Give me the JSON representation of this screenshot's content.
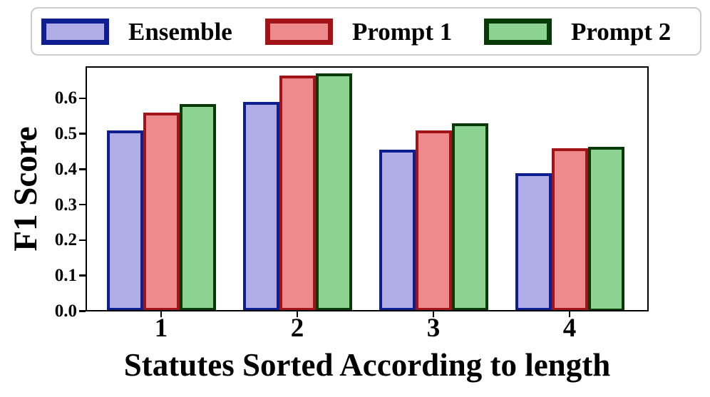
{
  "chart_data": {
    "type": "bar",
    "title": "",
    "xlabel": "Statutes Sorted According to length",
    "ylabel": "F1 Score",
    "categories": [
      "1",
      "2",
      "3",
      "4"
    ],
    "series": [
      {
        "name": "Ensemble",
        "fill": "#b0ace6",
        "edge": "#0d1e91",
        "values": [
          0.505,
          0.585,
          0.45,
          0.385
        ]
      },
      {
        "name": "Prompt 1",
        "fill": "#ee898c",
        "edge": "#a21318",
        "values": [
          0.555,
          0.66,
          0.505,
          0.455
        ]
      },
      {
        "name": "Prompt 2",
        "fill": "#8cd392",
        "edge": "#083a08",
        "values": [
          0.58,
          0.665,
          0.525,
          0.46
        ]
      }
    ],
    "yticks": [
      "0.0",
      "0.1",
      "0.2",
      "0.3",
      "0.4",
      "0.5",
      "0.6"
    ],
    "ylim": [
      0,
      0.69
    ],
    "grid": false,
    "legend_position": "top",
    "colors": {
      "axis": "#000000",
      "text": "#000000",
      "legend_border": "#cccccc",
      "background": "#ffffff"
    }
  }
}
